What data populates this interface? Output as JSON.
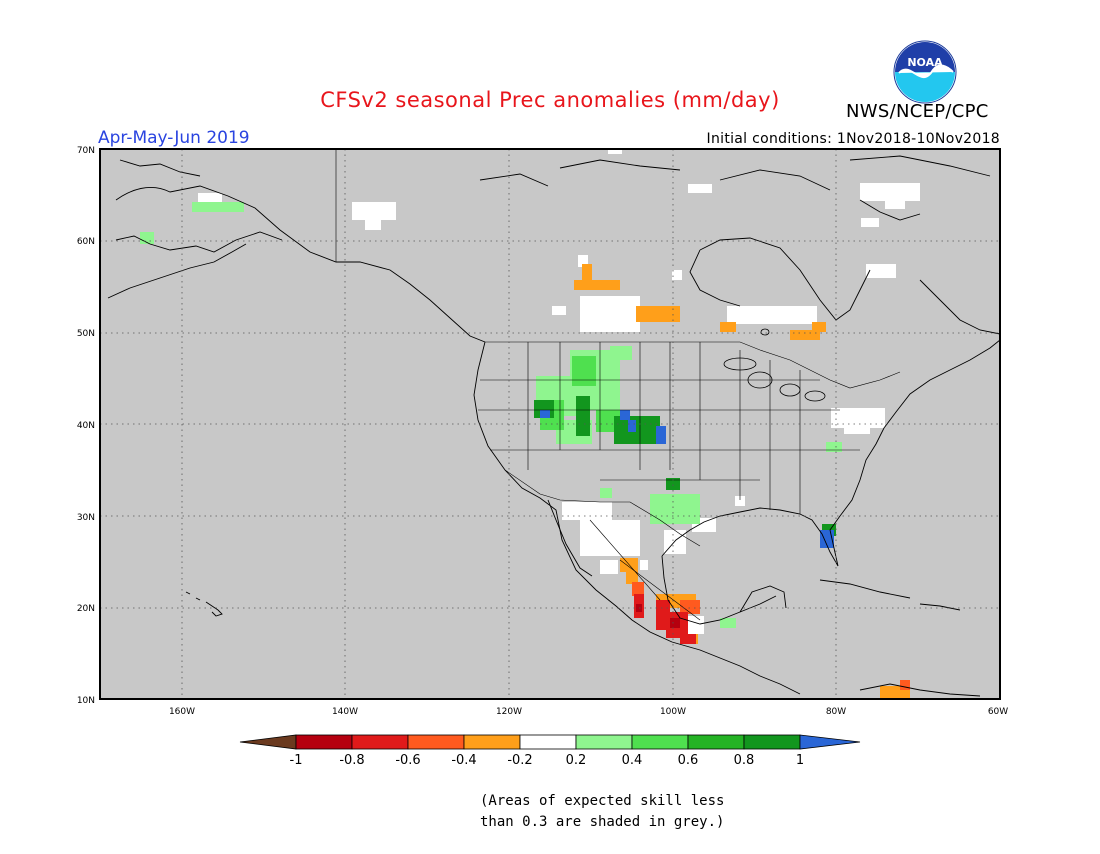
{
  "header": {
    "title": "CFSv2 seasonal Prec anomalies (mm/day)",
    "season": "Apr-May-Jun 2019",
    "initial_conditions": "Initial conditions: 1Nov2018-10Nov2018",
    "agency": "NWS/NCEP/CPC",
    "logo_text": "NOAA"
  },
  "map": {
    "lat_range": [
      10,
      70
    ],
    "lon_range": [
      -170,
      -60
    ],
    "lat_labels": [
      "70N",
      "60N",
      "50N",
      "40N",
      "30N",
      "20N",
      "10N"
    ],
    "lon_labels": [
      "160W",
      "140W",
      "120W",
      "100W",
      "80W",
      "60W"
    ],
    "background_color": "#c8c8c8"
  },
  "colorbar": {
    "labels": [
      "-1",
      "-0.8",
      "-0.6",
      "-0.4",
      "-0.2",
      "0.2",
      "0.4",
      "0.6",
      "0.8",
      "1"
    ],
    "colors": [
      "#6b3a1f",
      "#b5000f",
      "#e01a1a",
      "#ff5a1f",
      "#ff9f1a",
      "#ffffff",
      "#8ff58f",
      "#4fe04f",
      "#24b324",
      "#12961e",
      "#2a66d6"
    ]
  },
  "note": {
    "line1": "(Areas of expected skill less",
    "line2": "than 0.3 are shaded in grey.)"
  }
}
